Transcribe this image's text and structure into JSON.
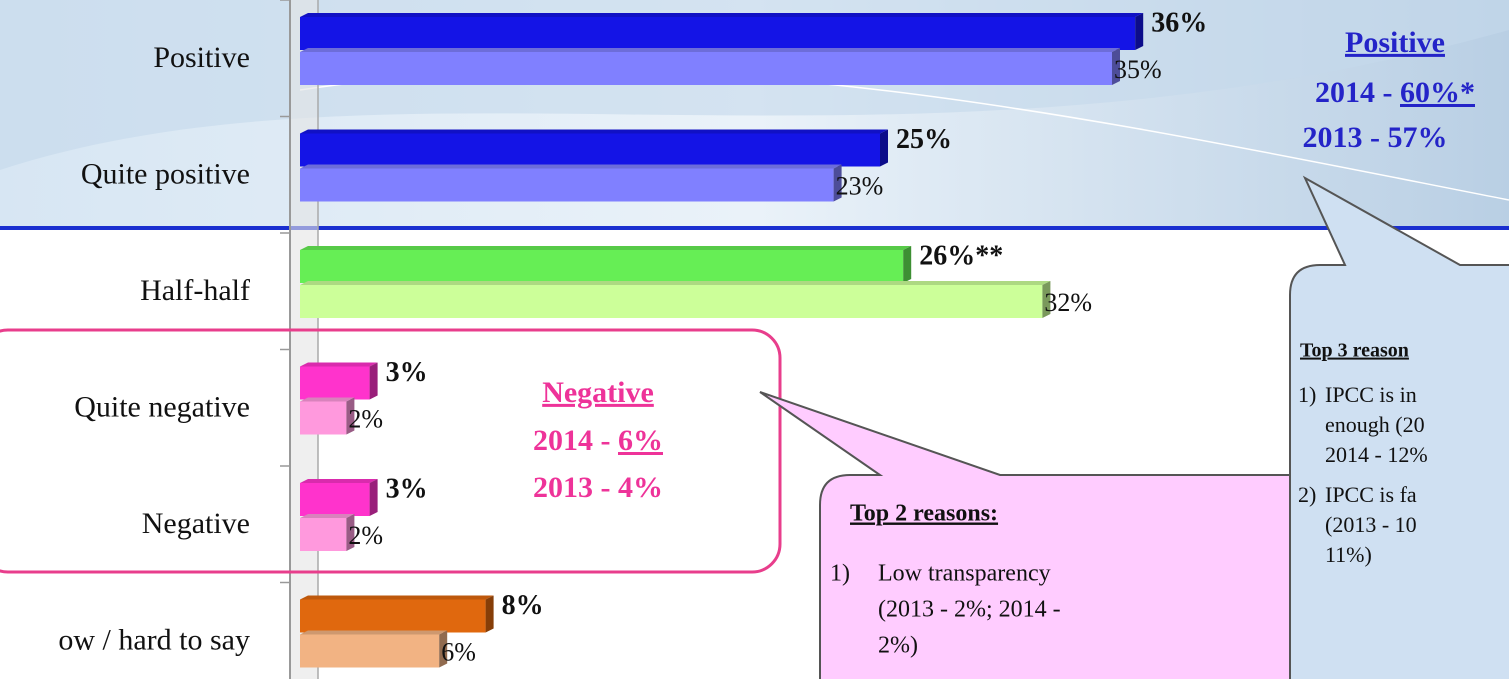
{
  "chart_data": {
    "type": "bar",
    "orientation": "horizontal",
    "categories": [
      "Positive",
      "Quite positive",
      "Half-half",
      "Quite negative",
      "Negative",
      "ow / hard to say"
    ],
    "series": [
      {
        "values": [
          36,
          25,
          26,
          3,
          3,
          8
        ],
        "value_labels": [
          "36%",
          "25%",
          "26%**",
          "3%",
          "3%",
          "8%"
        ],
        "colors": [
          "#1414e6",
          "#1414e6",
          "#66ee55",
          "#ff33cc",
          "#ff33cc",
          "#e0680e"
        ]
      },
      {
        "values": [
          35,
          23,
          32,
          2,
          2,
          6
        ],
        "value_labels": [
          "35%",
          "23%",
          "32%",
          "2%",
          "2%",
          "6%"
        ],
        "colors": [
          "#8080ff",
          "#8080ff",
          "#ccff99",
          "#ff99dd",
          "#ff99dd",
          "#f2b383"
        ]
      }
    ],
    "xlim": [
      0,
      50
    ],
    "annotations": {
      "positive_box": {
        "title": "Positive",
        "line1": [
          "2014 - ",
          "60%*"
        ],
        "line2": "2013 - 57%"
      },
      "negative_box": {
        "title": "Negative",
        "line1": [
          "2014 - ",
          "6%"
        ],
        "line2": "2013 - 4%"
      },
      "callout_left": {
        "title": "Top 2 reasons:",
        "items": [
          {
            "number": "1)",
            "lines": [
              "Low transparency",
              "(2013 - 2%; 2014 -",
              "2%)"
            ]
          }
        ]
      },
      "callout_right": {
        "title": "Top 3 reason",
        "items": [
          {
            "number": "1)",
            "lines": [
              "IPCC is in",
              "enough (20",
              "2014 - 12%"
            ]
          },
          {
            "number": "2)",
            "lines": [
              "IPCC is fa",
              "(2013 - 10",
              "11%)"
            ]
          }
        ]
      }
    }
  }
}
